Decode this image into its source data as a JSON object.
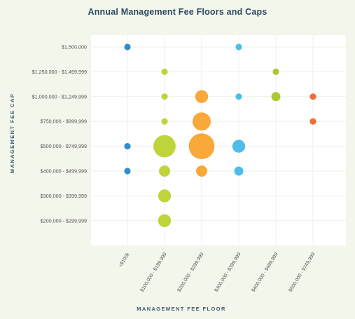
{
  "chart_data": {
    "type": "bubble",
    "title": "Annual Management Fee Floors and Caps",
    "xlabel": "MANAGEMENT FEE FLOOR",
    "ylabel": "MANAGEMENT FEE CAP",
    "x_categories": [
      "<$100k",
      "$100,000 - $199,999",
      "$200,000 - $299,999",
      "$300,000 - $399,999",
      "$400,000 - $499,999",
      "$500,000 - $749,999"
    ],
    "y_categories": [
      "$1,500,000",
      "$1,250,000 - $1,499,999",
      "$1,000,000 - $1,249,999",
      "$750,000 - $999,999",
      "$500,000 - $749,999",
      "$400,000 - $499,999",
      "$300,000 - $399,999",
      "$200,000 - $299,999"
    ],
    "points": [
      {
        "x": 0,
        "y": 0,
        "size": 1,
        "color": "#2e8fce"
      },
      {
        "x": 0,
        "y": 4,
        "size": 1,
        "color": "#2e8fce"
      },
      {
        "x": 0,
        "y": 5,
        "size": 1,
        "color": "#2e8fce"
      },
      {
        "x": 1,
        "y": 1,
        "size": 1,
        "color": "#bfd43a"
      },
      {
        "x": 1,
        "y": 2,
        "size": 1,
        "color": "#bfd43a"
      },
      {
        "x": 1,
        "y": 3,
        "size": 1,
        "color": "#bfd43a"
      },
      {
        "x": 1,
        "y": 4,
        "size": 12,
        "color": "#bfd43a"
      },
      {
        "x": 1,
        "y": 5,
        "size": 3,
        "color": "#bfd43a"
      },
      {
        "x": 1,
        "y": 6,
        "size": 4,
        "color": "#bfd43a"
      },
      {
        "x": 1,
        "y": 7,
        "size": 4,
        "color": "#bfd43a"
      },
      {
        "x": 2,
        "y": 2,
        "size": 4,
        "color": "#f9a83a"
      },
      {
        "x": 2,
        "y": 3,
        "size": 8,
        "color": "#f9a83a"
      },
      {
        "x": 2,
        "y": 4,
        "size": 16,
        "color": "#f9a83a"
      },
      {
        "x": 2,
        "y": 5,
        "size": 3,
        "color": "#f9a83a"
      },
      {
        "x": 3,
        "y": 0,
        "size": 1,
        "color": "#4fbde8"
      },
      {
        "x": 3,
        "y": 2,
        "size": 1,
        "color": "#4fbde8"
      },
      {
        "x": 3,
        "y": 4,
        "size": 4,
        "color": "#4fbde8"
      },
      {
        "x": 3,
        "y": 5,
        "size": 2,
        "color": "#4fbde8"
      },
      {
        "x": 4,
        "y": 1,
        "size": 1,
        "color": "#a9c832"
      },
      {
        "x": 4,
        "y": 2,
        "size": 2,
        "color": "#a9c832"
      },
      {
        "x": 5,
        "y": 2,
        "size": 1,
        "color": "#f26b3a"
      },
      {
        "x": 5,
        "y": 3,
        "size": 1,
        "color": "#f26b3a"
      }
    ]
  }
}
